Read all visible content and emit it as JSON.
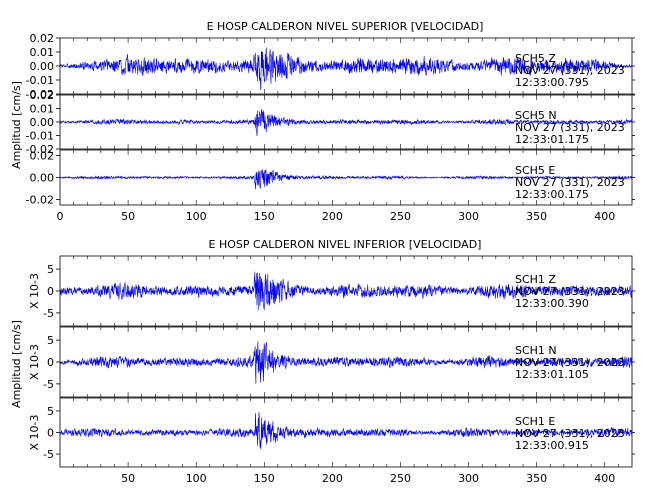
{
  "chart_data": [
    {
      "type": "line",
      "title": "E HOSP CALDERON NIVEL SUPERIOR [VELOCIDAD]",
      "ylabel": "Amplitud [cm/s]",
      "xlim": [
        0,
        420
      ],
      "x_ticks": [
        "0",
        "50",
        "100",
        "150",
        "200",
        "250",
        "300",
        "350",
        "400"
      ],
      "series_color": "#0000ff",
      "channels": [
        {
          "name": "SCH5   Z",
          "date": "NOV 27 (331), 2023",
          "time": "12:33:00.795",
          "ylim": [
            -0.02,
            0.02
          ],
          "y_ticks": [
            "0.02",
            "0.01",
            "0.00",
            "-0.01",
            "-0.02"
          ],
          "noise_amplitude": 0.009,
          "event_center": 148,
          "event_amplitude": 0.018,
          "end_taper": true
        },
        {
          "name": "SCH5   N",
          "date": "NOV 27 (331), 2023",
          "time": "12:33:01.175",
          "ylim": [
            -0.02,
            0.02
          ],
          "y_ticks": [
            "0.02",
            "0.01",
            "0.00",
            "-0.01",
            "-0.02"
          ],
          "noise_amplitude": 0.0025,
          "event_center": 148,
          "event_amplitude": 0.016,
          "end_taper": false
        },
        {
          "name": "SCH5   E",
          "date": "NOV 27 (331), 2023",
          "time": "12:33:00.175",
          "ylim": [
            -0.025,
            0.025
          ],
          "y_ticks": [
            "0.02",
            "0.00",
            "-0.02"
          ],
          "noise_amplitude": 0.0018,
          "event_center": 148,
          "event_amplitude": 0.02,
          "end_taper": false
        }
      ]
    },
    {
      "type": "line",
      "title": "E HOSP CALDERON NIVEL INFERIOR [VELOCIDAD]",
      "ylabel": "Amplitud [cm/s]",
      "xlim": [
        0,
        420
      ],
      "x_ticks": [
        "50",
        "100",
        "150",
        "200",
        "250",
        "300",
        "350",
        "400"
      ],
      "series_color": "#0000ff",
      "channels": [
        {
          "name": "SCH1   Z",
          "date": "NOV 27 (331), 2023",
          "time": "12:33:00.390",
          "scale_label": "X 10-3",
          "ylim": [
            -8,
            8
          ],
          "y_ticks": [
            "5",
            "0",
            "-5"
          ],
          "noise_amplitude": 2.2,
          "event_center": 148,
          "event_amplitude": 7.5,
          "end_taper": false
        },
        {
          "name": "SCH1   N",
          "date": "NOV 27 (331), 2023",
          "time": "12:33:01.105",
          "scale_label": "X 10-3",
          "ylim": [
            -8,
            8
          ],
          "y_ticks": [
            "5",
            "0",
            "-5"
          ],
          "noise_amplitude": 1.7,
          "event_center": 148,
          "event_amplitude": 7.0,
          "end_taper": false
        },
        {
          "name": "SCH1   E",
          "date": "NOV 27 (331), 2023",
          "time": "12:33:00.915",
          "scale_label": "X 10-3",
          "ylim": [
            -8,
            8
          ],
          "y_ticks": [
            "5",
            "0",
            "-5"
          ],
          "noise_amplitude": 1.3,
          "event_center": 148,
          "event_amplitude": 7.5,
          "end_taper": false
        }
      ]
    }
  ]
}
